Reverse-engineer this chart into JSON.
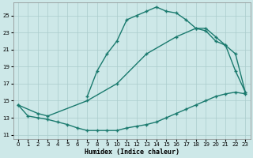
{
  "xlabel": "Humidex (Indice chaleur)",
  "bg_color": "#cde8e8",
  "grid_color": "#aacccc",
  "line_color": "#1a7a6e",
  "xlim": [
    -0.5,
    23.5
  ],
  "ylim": [
    10.5,
    26.5
  ],
  "xticks": [
    0,
    1,
    2,
    3,
    4,
    5,
    6,
    7,
    8,
    9,
    10,
    11,
    12,
    13,
    14,
    15,
    16,
    17,
    18,
    19,
    20,
    21,
    22,
    23
  ],
  "yticks": [
    11,
    13,
    15,
    17,
    19,
    21,
    23,
    25
  ],
  "curve1_x": [
    7,
    8,
    9,
    10,
    11,
    12,
    13,
    14,
    15,
    16,
    17,
    18,
    19,
    20,
    21,
    22,
    23
  ],
  "curve1_y": [
    15.5,
    18.5,
    20.5,
    22.0,
    24.5,
    25.0,
    25.5,
    26.0,
    25.5,
    25.3,
    24.5,
    23.5,
    23.2,
    22.0,
    21.5,
    18.5,
    16.0
  ],
  "curve2_x": [
    0,
    2,
    3,
    7,
    10,
    13,
    16,
    18,
    19,
    20,
    21,
    22,
    23
  ],
  "curve2_y": [
    14.5,
    13.5,
    13.2,
    15.0,
    17.0,
    20.5,
    22.5,
    23.5,
    23.5,
    22.5,
    21.5,
    20.5,
    16.0
  ],
  "curve3_x": [
    0,
    1,
    2,
    3,
    4,
    5,
    6,
    7,
    8,
    9,
    10,
    11,
    12,
    13,
    14,
    15,
    16,
    17,
    18,
    19,
    20,
    21,
    22,
    23
  ],
  "curve3_y": [
    14.5,
    13.2,
    13.0,
    12.8,
    12.5,
    12.2,
    11.8,
    11.5,
    11.5,
    11.5,
    11.5,
    11.8,
    12.0,
    12.2,
    12.5,
    13.0,
    13.5,
    14.0,
    14.5,
    15.0,
    15.5,
    15.8,
    16.0,
    15.8
  ]
}
